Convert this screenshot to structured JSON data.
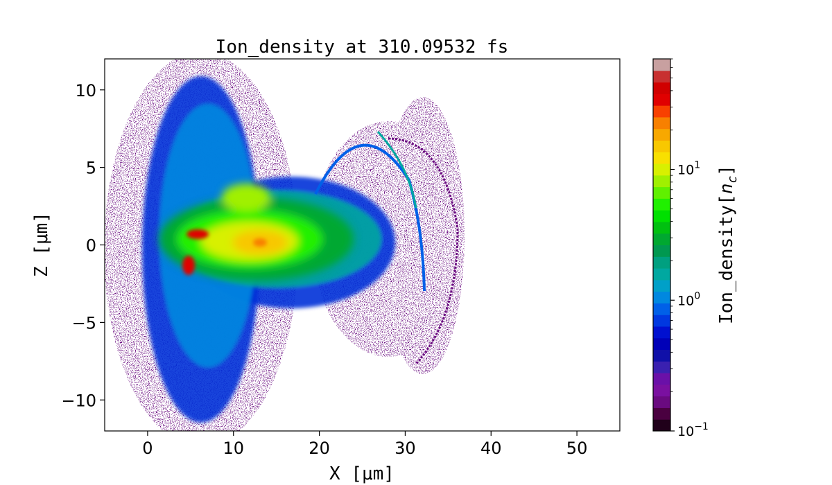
{
  "chart_data": {
    "type": "heatmap",
    "title": "Ion_density at 310.09532 fs",
    "xlabel": "X [μm]",
    "ylabel": "Z [μm]",
    "xlim": [
      -5,
      55
    ],
    "ylim": [
      -12,
      12
    ],
    "x_ticks": [
      0,
      10,
      20,
      30,
      40,
      50
    ],
    "x_tick_labels": [
      "0",
      "10",
      "20",
      "30",
      "40",
      "50"
    ],
    "y_ticks": [
      -10,
      -5,
      0,
      5,
      10
    ],
    "y_tick_labels": [
      "−10",
      "−5",
      "0",
      "5",
      "10"
    ],
    "colorbar": {
      "label": "Ion_density[n_c]",
      "label_main": "Ion_density[",
      "label_var": "n",
      "label_sub": "c",
      "label_close": "]",
      "scale": "log",
      "range": [
        0.1,
        70
      ],
      "ticks": [
        0.1,
        1,
        10
      ],
      "tick_labels": [
        {
          "base": "10",
          "exp": "−1"
        },
        {
          "base": "10",
          "exp": "0"
        },
        {
          "base": "10",
          "exp": "1"
        }
      ],
      "colors": [
        "#20001a",
        "#4a0040",
        "#6a0a80",
        "#7a10a0",
        "#6a10a8",
        "#3a20b0",
        "#1010a8",
        "#0000b8",
        "#0010d0",
        "#0038e0",
        "#0060e8",
        "#0088e0",
        "#00a0c8",
        "#00a8a0",
        "#00a080",
        "#009850",
        "#00a830",
        "#00c010",
        "#00e000",
        "#20f000",
        "#60f000",
        "#a0f000",
        "#d8f000",
        "#f8e000",
        "#f8c800",
        "#f8a800",
        "#f88000",
        "#f84000",
        "#e00000",
        "#d00000",
        "#c83030",
        "#c8a0a0"
      ]
    },
    "regions": [
      {
        "name": "dense core",
        "x": [
          2,
          22
        ],
        "z": [
          -2.5,
          3
        ],
        "density_range": [
          3,
          20
        ]
      },
      {
        "name": "hotspots",
        "points": [
          [
            5,
            0.5
          ],
          [
            5,
            -1.5
          ],
          [
            13,
            0.2
          ]
        ],
        "density": 40
      },
      {
        "name": "vertical plume",
        "x": [
          0,
          15
        ],
        "z": [
          -12,
          12
        ],
        "density_range": [
          0.2,
          2
        ]
      },
      {
        "name": "expanding shell",
        "x": [
          22,
          37
        ],
        "z": [
          -8,
          8
        ],
        "density_range": [
          0.1,
          1
        ]
      }
    ]
  }
}
